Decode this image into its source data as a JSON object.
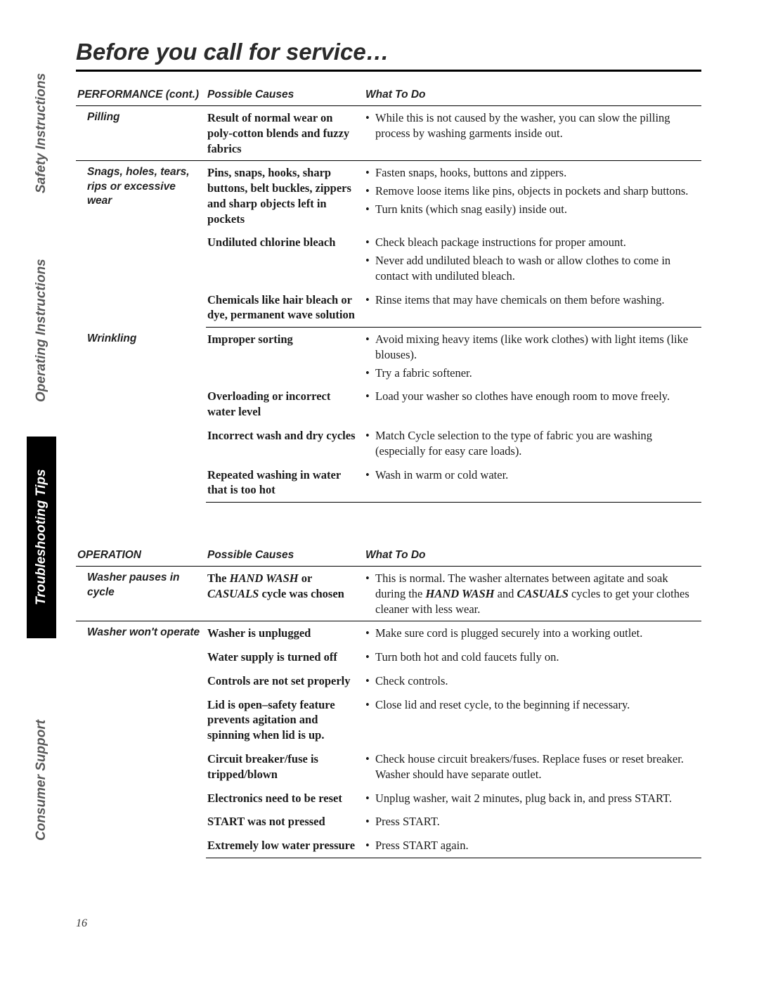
{
  "tabs": {
    "t1": "Safety Instructions",
    "t2": "Operating Instructions",
    "t3": "Troubleshooting Tips",
    "t4": "Consumer Support"
  },
  "title": "Before you call for service…",
  "pagenum": "16",
  "perf": {
    "header": {
      "c1": "PERFORMANCE (cont.)",
      "c2": "Possible Causes",
      "c3": "What To Do"
    },
    "sec1": {
      "problem": "Pilling",
      "cause": "Result of normal wear on poly-cotton blends and fuzzy fabrics",
      "todo1": "While this is not caused by the washer, you can slow the pilling process by washing garments inside out."
    },
    "sec2": {
      "problem": "Snags, holes, tears, rips or excessive wear",
      "c1": "Pins, snaps, hooks, sharp buttons, belt buckles, zippers and sharp objects left in pockets",
      "t1a": "Fasten snaps, hooks, buttons and zippers.",
      "t1b": "Remove loose items like pins, objects in pockets and sharp buttons.",
      "t1c": "Turn knits (which snag easily) inside out.",
      "c2": "Undiluted chlorine bleach",
      "t2a": "Check bleach package instructions for proper amount.",
      "t2b": "Never add undiluted bleach to wash or allow clothes to come in contact with undiluted bleach.",
      "c3": "Chemicals like hair bleach or dye, permanent wave solution",
      "t3a": "Rinse items that may have chemicals on them before washing."
    },
    "sec3": {
      "problem": "Wrinkling",
      "c1": "Improper sorting",
      "t1a": "Avoid mixing heavy items (like work clothes) with light items (like blouses).",
      "t1b": "Try a fabric softener.",
      "c2": "Overloading or incorrect water level",
      "t2a": "Load your washer so clothes have enough room to move freely.",
      "c3": "Incorrect wash and dry cycles",
      "t3a": "Match Cycle selection to the type of fabric you are washing (especially for easy care loads).",
      "c4": "Repeated washing in water that is too hot",
      "t4a": "Wash in warm or cold water."
    }
  },
  "op": {
    "header": {
      "c1": "OPERATION",
      "c2": "Possible Causes",
      "c3": "What To Do"
    },
    "sec1": {
      "problem": "Washer pauses in cycle",
      "cause_pre": "The ",
      "cause_b1": "HAND WASH",
      "cause_mid": " or ",
      "cause_b2": "CASUALS",
      "cause_post": " cycle was chosen",
      "todo_pre": "This is normal. The washer alternates between agitate and soak during the ",
      "todo_b1": "HAND WASH",
      "todo_mid": " and ",
      "todo_b2": "CASUALS",
      "todo_post": " cycles to get your clothes cleaner with less wear."
    },
    "sec2": {
      "problem": "Washer won't operate",
      "c1": "Washer is unplugged",
      "t1": "Make sure cord is plugged securely into a working outlet.",
      "c2": "Water supply is turned off",
      "t2": "Turn both hot and cold faucets fully on.",
      "c3": "Controls are not set properly",
      "t3": "Check controls.",
      "c4": "Lid is open–safety feature prevents agitation and spinning when lid is up.",
      "t4": "Close lid and reset cycle, to the beginning if necessary.",
      "c5": "Circuit breaker/fuse is tripped/blown",
      "t5": "Check house circuit breakers/fuses. Replace fuses or reset breaker. Washer should have separate outlet.",
      "c6": "Electronics need to be reset",
      "t6": "Unplug washer, wait 2 minutes, plug back in, and press START.",
      "c7": "START was not pressed",
      "t7": "Press START.",
      "c8": "Extremely low water pressure",
      "t8": "Press START again."
    }
  }
}
